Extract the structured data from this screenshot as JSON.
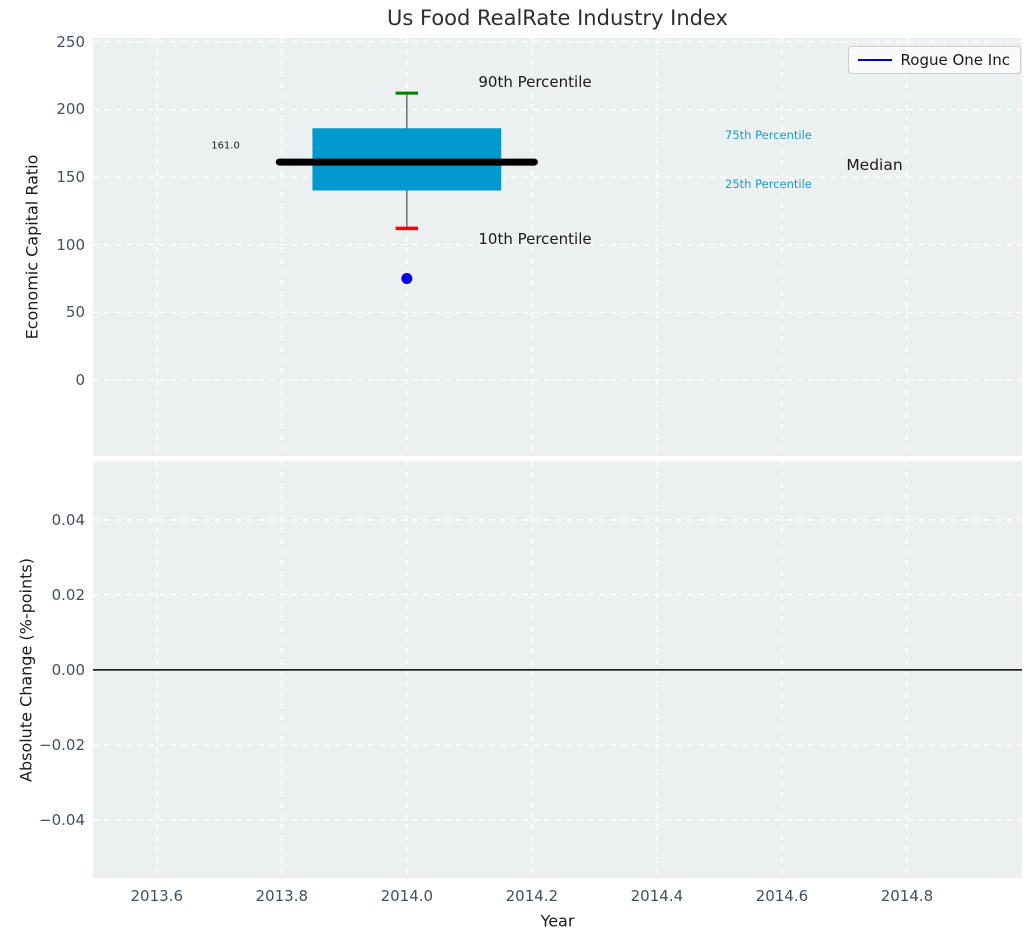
{
  "title": "Us Food RealRate Industry Index",
  "legend": {
    "label": "Rogue One Inc"
  },
  "colors": {
    "figure_bg": "#ffffff",
    "axes_bg": "#ecf0f1",
    "grid": "#ffffff",
    "tick_label": "#3d5166",
    "axis_label": "#1a1a1a",
    "title_text": "#2e2e2e",
    "box_fill": "#0099cd",
    "median_line": "#000000",
    "whisker": "#5a5a5a",
    "cap_90": "#008000",
    "cap_10": "#ff0000",
    "company_dot": "#0000ee",
    "legend_line": "#0000dd",
    "percentile_label": "#1b9cd0",
    "zero_line": "#000000"
  },
  "chart_data": [
    {
      "type": "box",
      "title": "Us Food RealRate Industry Index",
      "ylabel": "Economic Capital Ratio",
      "xlim": [
        2013.498,
        2014.984
      ],
      "ylim": [
        -56.2,
        252.7
      ],
      "grid": true,
      "xticks": [
        {
          "v": 2013.6,
          "label": "2013.6"
        },
        {
          "v": 2013.8,
          "label": "2013.8"
        },
        {
          "v": 2014.0,
          "label": "2014.0"
        },
        {
          "v": 2014.2,
          "label": "2014.2"
        },
        {
          "v": 2014.4,
          "label": "2014.4"
        },
        {
          "v": 2014.6,
          "label": "2014.6"
        },
        {
          "v": 2014.8,
          "label": "2014.8"
        }
      ],
      "yticks": [
        {
          "v": 0,
          "label": "0"
        },
        {
          "v": 50,
          "label": "50"
        },
        {
          "v": 100,
          "label": "100"
        },
        {
          "v": 150,
          "label": "150"
        },
        {
          "v": 200,
          "label": "200"
        },
        {
          "v": 250,
          "label": "250"
        }
      ],
      "box": {
        "x": 2014.0,
        "p90": 212,
        "p75": 186,
        "median": 161,
        "p25": 140,
        "p10": 112,
        "box_halfwidth": 0.151,
        "median_halfwidth": 0.204,
        "cap_halfwidth": 0.018
      },
      "company_point": {
        "name": "Rogue One Inc",
        "x": 2014.0,
        "y": 75
      },
      "annotations": [
        {
          "text": "90th Percentile",
          "x": 2014.205,
          "y": 220,
          "size": 15,
          "color": "#1a1a1a",
          "anchor": "mid"
        },
        {
          "text": "10th Percentile",
          "x": 2014.205,
          "y": 104,
          "size": 15,
          "color": "#1a1a1a",
          "anchor": "mid"
        },
        {
          "text": "75th Percentile",
          "x": 2014.509,
          "y": 181,
          "size": 11.5,
          "color": "#1b9cd0",
          "anchor": "start"
        },
        {
          "text": "25th Percentile",
          "x": 2014.509,
          "y": 145,
          "size": 11.5,
          "color": "#1b9cd0",
          "anchor": "start"
        },
        {
          "text": "Median",
          "x": 2014.703,
          "y": 159,
          "size": 15.5,
          "color": "#1a1a1a",
          "anchor": "start"
        },
        {
          "text": "161.0",
          "x": 2013.71,
          "y": 173,
          "size": 10,
          "color": "#1a1a1a",
          "anchor": "mid"
        }
      ]
    },
    {
      "type": "line",
      "ylabel": "Absolute Change (%-points)",
      "xlabel": "Year",
      "xlim": [
        2013.498,
        2014.984
      ],
      "ylim": [
        -0.0555,
        0.0557
      ],
      "grid": true,
      "xticks": [
        {
          "v": 2013.6,
          "label": "2013.6"
        },
        {
          "v": 2013.8,
          "label": "2013.8"
        },
        {
          "v": 2014.0,
          "label": "2014.0"
        },
        {
          "v": 2014.2,
          "label": "2014.2"
        },
        {
          "v": 2014.4,
          "label": "2014.4"
        },
        {
          "v": 2014.6,
          "label": "2014.6"
        },
        {
          "v": 2014.8,
          "label": "2014.8"
        }
      ],
      "yticks": [
        {
          "v": 0.04,
          "label": "0.04"
        },
        {
          "v": 0.02,
          "label": "0.02"
        },
        {
          "v": 0.0,
          "label": "0.00"
        },
        {
          "v": -0.02,
          "label": "−0.02"
        },
        {
          "v": -0.04,
          "label": "−0.04"
        }
      ],
      "zero_line_y": 0.0
    }
  ]
}
